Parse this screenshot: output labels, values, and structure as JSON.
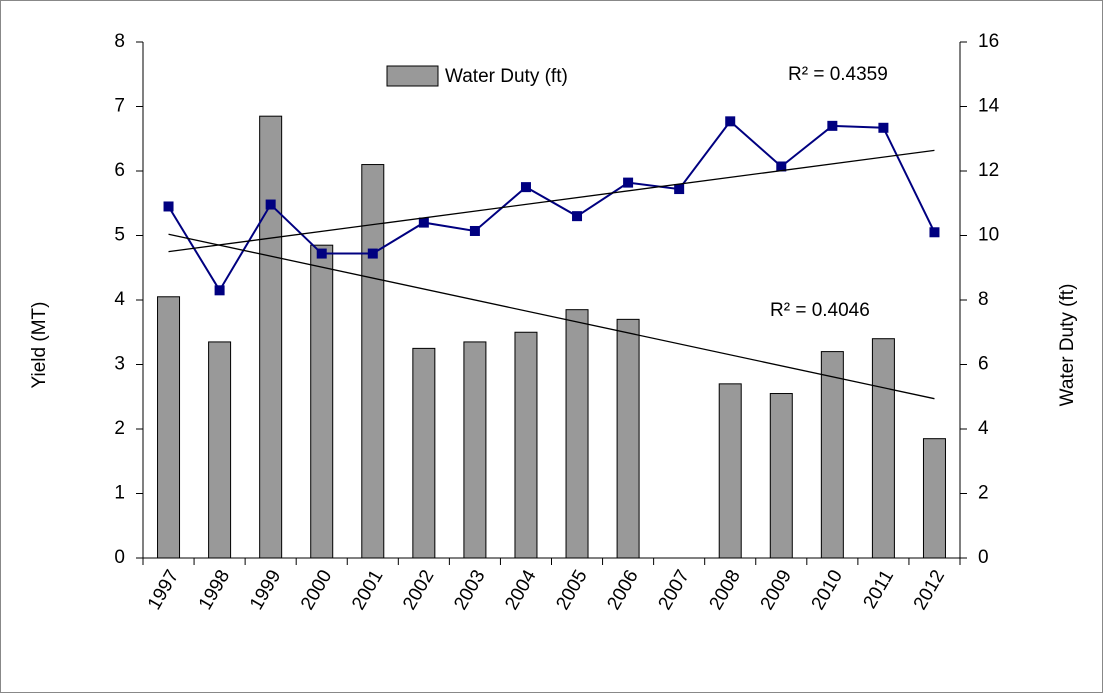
{
  "chart_data": {
    "type": "bar-line",
    "categories": [
      "1997",
      "1998",
      "1999",
      "2000",
      "2001",
      "2002",
      "2003",
      "2004",
      "2005",
      "2006",
      "2007",
      "2008",
      "2009",
      "2010",
      "2011",
      "2012"
    ],
    "series": [
      {
        "name": "Water Duty (ft)",
        "type": "bar",
        "axis": "y2",
        "color": "#999999",
        "values": [
          8.1,
          6.7,
          13.7,
          9.7,
          12.2,
          6.5,
          6.7,
          7.0,
          7.7,
          7.4,
          null,
          5.4,
          5.1,
          6.4,
          6.8,
          3.7
        ]
      },
      {
        "type": "line",
        "axis": "y",
        "color": "#000080",
        "values": [
          5.45,
          4.15,
          5.48,
          4.72,
          4.72,
          5.2,
          5.07,
          5.75,
          5.3,
          5.82,
          5.72,
          6.77,
          6.07,
          6.7,
          6.67,
          5.05
        ]
      }
    ],
    "trendlines": [
      {
        "axis": "y",
        "values": [
          4.75,
          6.32
        ],
        "label": "R² = 0.4359",
        "color": "#000000"
      },
      {
        "axis": "y2",
        "values": [
          10.04,
          4.94
        ],
        "label": "R² = 0.4046",
        "color": "#000000"
      }
    ],
    "ylabel": "Yield (MT)",
    "y2label": "Water Duty (ft)",
    "ylim": [
      0,
      8
    ],
    "yticks": [
      0,
      1,
      2,
      3,
      4,
      5,
      6,
      7,
      8
    ],
    "y2lim": [
      0,
      16
    ],
    "y2ticks": [
      0,
      2,
      4,
      6,
      8,
      10,
      12,
      14,
      16
    ],
    "grid": false
  }
}
